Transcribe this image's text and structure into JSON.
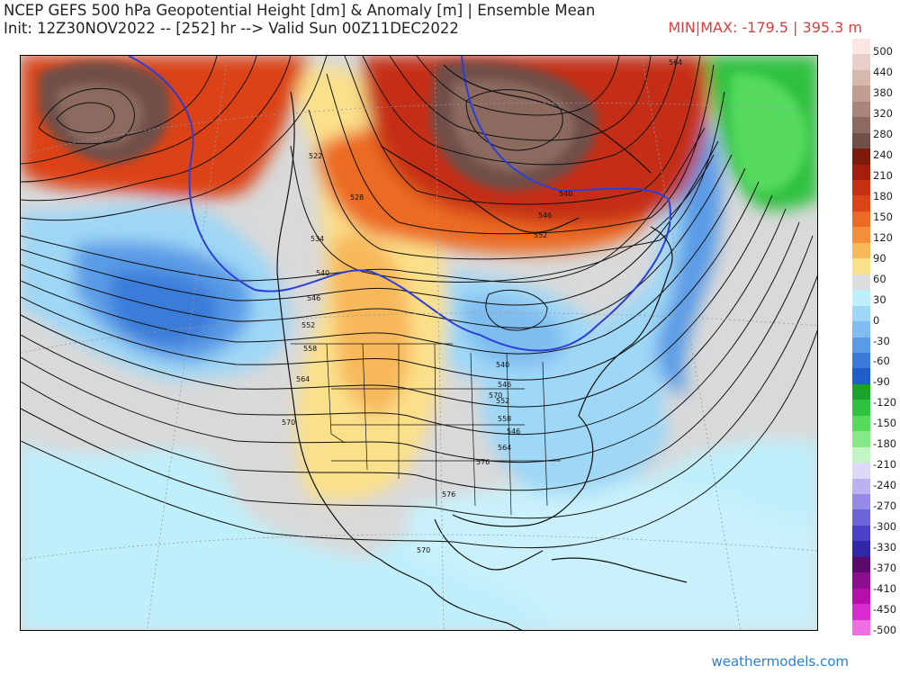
{
  "header": {
    "title": "NCEP GEFS 500 hPa Geopotential Height [dm] & Anomaly [m] | Ensemble Mean",
    "init_line": "Init: 12Z30NOV2022 -- [252] hr --> Valid Sun 00Z11DEC2022",
    "minmax": "MIN|MAX: -179.5 | 395.3 m"
  },
  "colorbar": {
    "labels": [
      "500",
      "440",
      "380",
      "320",
      "280",
      "240",
      "210",
      "180",
      "150",
      "120",
      "90",
      "60",
      "30",
      "0",
      "-30",
      "-60",
      "-90",
      "-120",
      "-150",
      "-180",
      "-210",
      "-240",
      "-270",
      "-300",
      "-330",
      "-370",
      "-410",
      "-450",
      "-500"
    ],
    "colors": [
      "#fbe6e4",
      "#e9cfca",
      "#d6b7ae",
      "#c29d92",
      "#a9847a",
      "#8c6a61",
      "#6f4f48",
      "#7a1b0c",
      "#a31e0b",
      "#c52f12",
      "#dc4317",
      "#ec6a23",
      "#f38f3a",
      "#f7b85a",
      "#fbe08a",
      "#dddddd",
      "#bfeffb",
      "#9fd7f6",
      "#7fbdf0",
      "#5a9be6",
      "#3a7bd9",
      "#1f5fcc",
      "#1aa22b",
      "#2fc140",
      "#55da5e",
      "#85ea86",
      "#c3f4c3",
      "#ded7f7",
      "#bcb2f0",
      "#958be6",
      "#6c64d9",
      "#4a40c9",
      "#2f27a8",
      "#5a0a6a",
      "#8a0e8e",
      "#b50eaa",
      "#d82ad2",
      "#f06de2"
    ]
  },
  "map": {
    "contour_labels": [
      "522",
      "528",
      "534",
      "540",
      "546",
      "552",
      "558",
      "564",
      "570",
      "576",
      "576",
      "540",
      "546",
      "552",
      "558",
      "564",
      "570",
      "540",
      "546",
      "552",
      "564",
      "570",
      "546"
    ],
    "blue_line_labels": [
      "546",
      "540",
      "546",
      "546"
    ]
  },
  "credit": "weathermodels.com"
}
